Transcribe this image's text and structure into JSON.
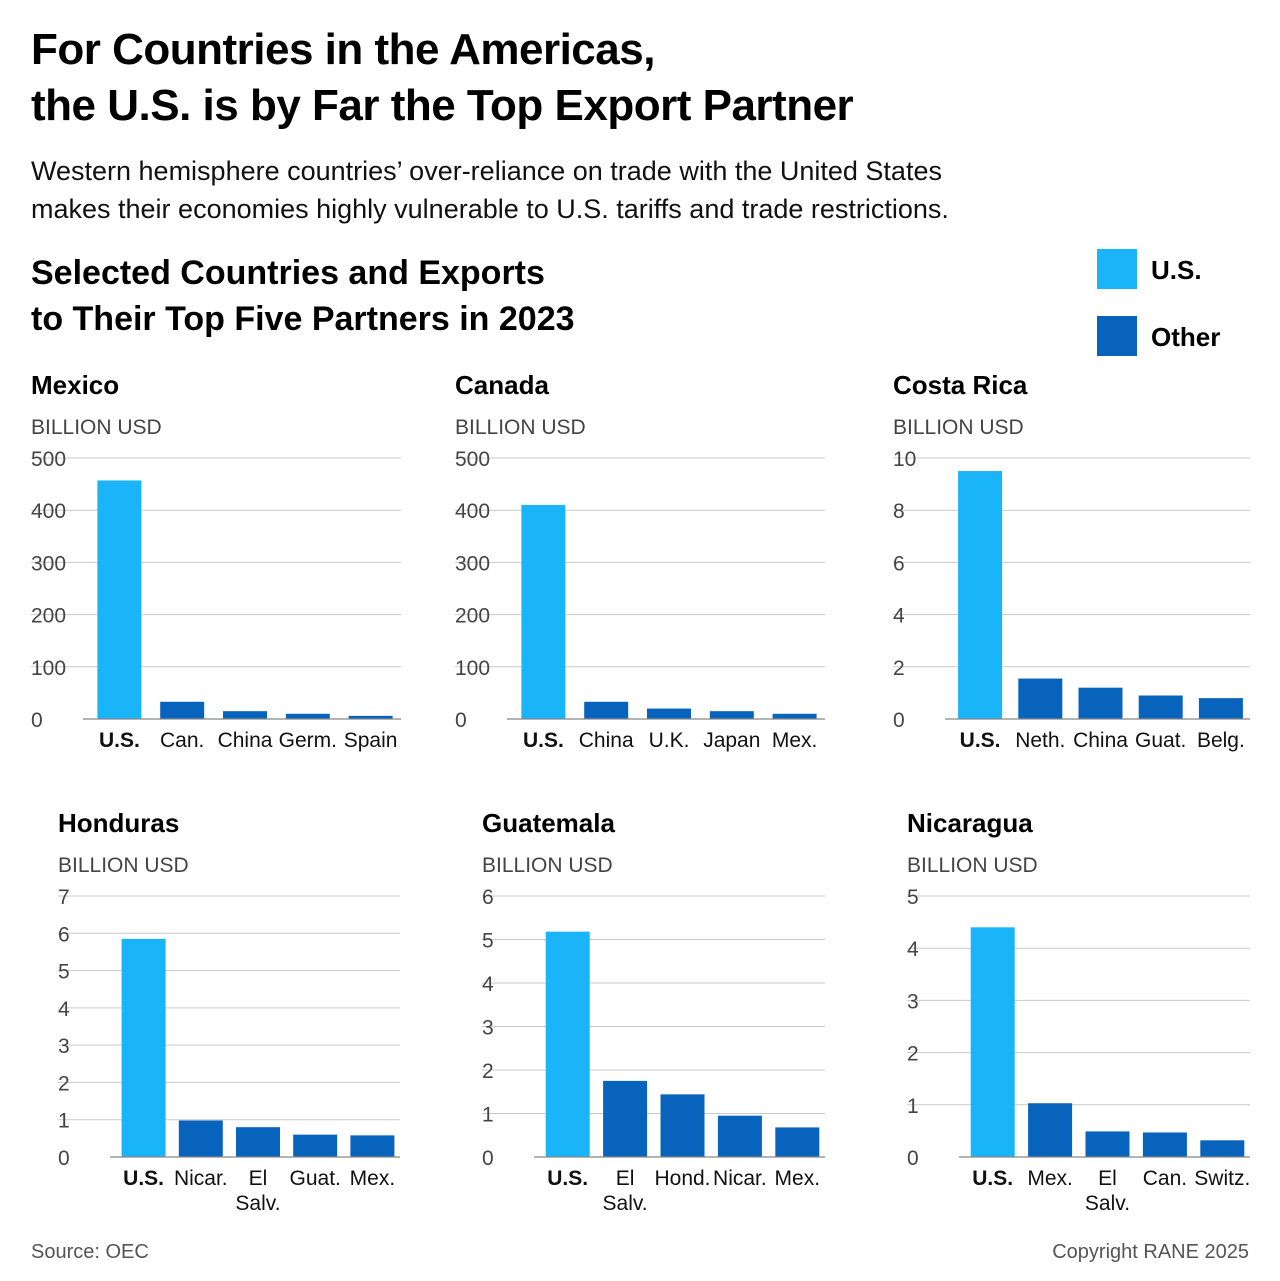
{
  "header": {
    "title_lines": [
      "For Countries in the Americas,",
      "the U.S. is by Far the Top Export Partner"
    ],
    "subtitle_lines": [
      "Western hemisphere countries’ over-reliance on trade with the United States",
      "makes their economies highly vulnerable to U.S. tariffs and trade restrictions."
    ],
    "section_title_lines": [
      "Selected Countries and Exports",
      "to Their Top Five Partners in 2023"
    ]
  },
  "legend": {
    "items": [
      {
        "label": "U.S.",
        "color": "#1ab4f8"
      },
      {
        "label": "Other",
        "color": "#0863bd"
      }
    ]
  },
  "colors": {
    "us": "#1ab4f8",
    "other": "#0863bd"
  },
  "chart_data": [
    {
      "type": "bar",
      "title": "Mexico",
      "ylabel": "BILLION USD",
      "categories": [
        "U.S.",
        "Can.",
        "China",
        "Germ.",
        "Spain"
      ],
      "values": [
        457,
        33,
        15,
        10,
        6
      ],
      "ylim": [
        0,
        500
      ],
      "yticks": [
        0,
        100,
        200,
        300,
        400,
        500
      ]
    },
    {
      "type": "bar",
      "title": "Canada",
      "ylabel": "BILLION USD",
      "categories": [
        "U.S.",
        "China",
        "U.K.",
        "Japan",
        "Mex."
      ],
      "values": [
        410,
        33,
        20,
        15,
        10
      ],
      "ylim": [
        0,
        500
      ],
      "yticks": [
        0,
        100,
        200,
        300,
        400,
        500
      ]
    },
    {
      "type": "bar",
      "title": "Costa Rica",
      "ylabel": "BILLION USD",
      "categories": [
        "U.S.",
        "Neth.",
        "China",
        "Guat.",
        "Belg."
      ],
      "values": [
        9.5,
        1.55,
        1.2,
        0.9,
        0.8
      ],
      "ylim": [
        0,
        10
      ],
      "yticks": [
        0,
        2,
        4,
        6,
        8,
        10
      ]
    },
    {
      "type": "bar",
      "title": "Honduras",
      "ylabel": "BILLION USD",
      "categories": [
        "U.S.",
        "Nicar.",
        "El Salv.",
        "Guat.",
        "Mex."
      ],
      "values": [
        5.85,
        0.98,
        0.8,
        0.6,
        0.58
      ],
      "ylim": [
        0,
        7
      ],
      "yticks": [
        0,
        1,
        2,
        3,
        4,
        5,
        6,
        7
      ]
    },
    {
      "type": "bar",
      "title": "Guatemala",
      "ylabel": "BILLION USD",
      "categories": [
        "U.S.",
        "El Salv.",
        "Hond.",
        "Nicar.",
        "Mex."
      ],
      "values": [
        5.18,
        1.75,
        1.44,
        0.95,
        0.68
      ],
      "ylim": [
        0,
        6
      ],
      "yticks": [
        0,
        1,
        2,
        3,
        4,
        5,
        6
      ]
    },
    {
      "type": "bar",
      "title": "Nicaragua",
      "ylabel": "BILLION USD",
      "categories": [
        "U.S.",
        "Mex.",
        "El Salv.",
        "Can.",
        "Switz."
      ],
      "values": [
        4.4,
        1.03,
        0.49,
        0.47,
        0.32
      ],
      "ylim": [
        0,
        5
      ],
      "yticks": [
        0,
        1,
        2,
        3,
        4,
        5
      ]
    }
  ],
  "footer": {
    "source": "Source: OEC",
    "copyright": "Copyright RANE 2025"
  }
}
